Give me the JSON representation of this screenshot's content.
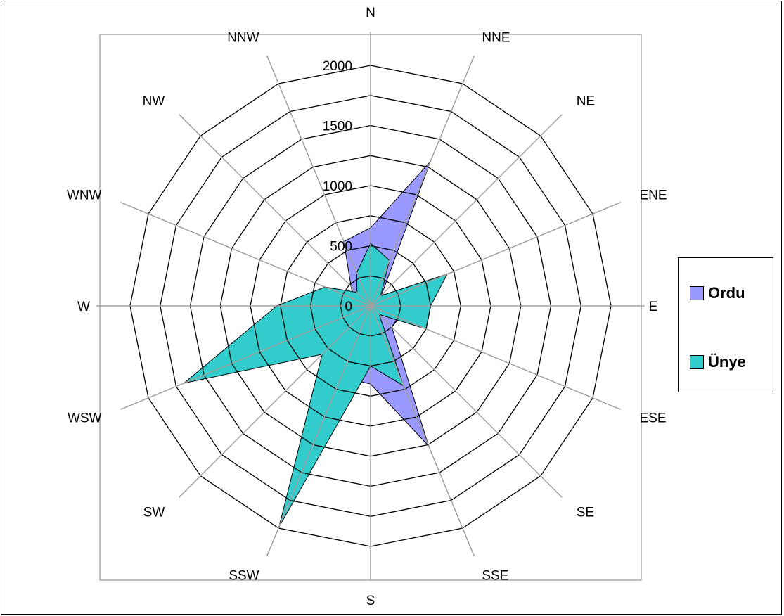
{
  "chart_data": {
    "type": "radar",
    "title": "",
    "categories": [
      "N",
      "NNE",
      "NE",
      "ENE",
      "E",
      "ESE",
      "SE",
      "SSE",
      "S",
      "SSW",
      "SW",
      "WSW",
      "W",
      "WNW",
      "NW",
      "NNW"
    ],
    "rticks": [
      0,
      500,
      1000,
      1500,
      2000
    ],
    "rlim": [
      0,
      2000
    ],
    "grid": true,
    "legend_position": "right",
    "series": [
      {
        "name": "Ordu",
        "color": "#9999FF",
        "values": [
          650,
          1300,
          130,
          320,
          100,
          260,
          250,
          1260,
          650,
          640,
          110,
          200,
          110,
          150,
          230,
          580
        ]
      },
      {
        "name": "Ünye",
        "color": "#33CCCC",
        "values": [
          520,
          410,
          120,
          690,
          500,
          500,
          100,
          720,
          500,
          1990,
          570,
          1680,
          780,
          410,
          160,
          300
        ]
      }
    ]
  }
}
